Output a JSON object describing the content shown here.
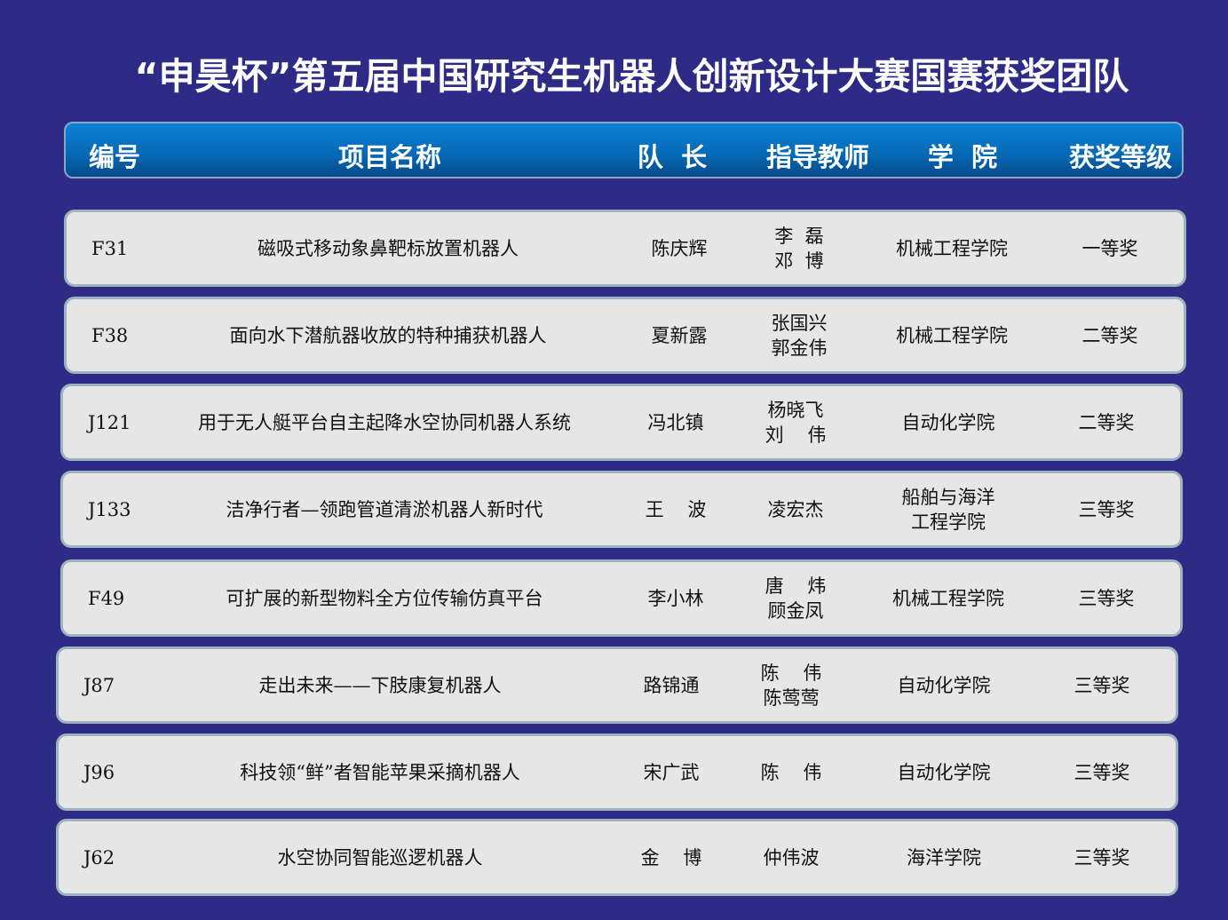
{
  "title": "“申昊杯”第五届中国研究生机器人创新设计大赛国赛获奖团队",
  "columns": [
    "编号",
    "项目名称",
    "队  长",
    "指导教师",
    "学  院",
    "获奖等级"
  ],
  "rows": [
    {
      "id": "F31",
      "name": "磁吸式移动象鼻靶标放置机器人",
      "leader": "陈庆辉",
      "advisor": "李  磊\n邓  博",
      "college": "机械工程学院",
      "award": "一等奖"
    },
    {
      "id": "F38",
      "name": "面向水下潜航器收放的特种捕获机器人",
      "leader": "夏新露",
      "advisor": "张国兴\n郭金伟",
      "college": "机械工程学院",
      "award": "二等奖"
    },
    {
      "id": "J121",
      "name": "用于无人艇平台自主起降水空协同机器人系统",
      "leader": "冯北镇",
      "advisor": "杨晓飞\n刘    伟",
      "college": "自动化学院",
      "award": "二等奖"
    },
    {
      "id": "J133",
      "name": "洁净行者—领跑管道清淤机器人新时代",
      "leader": "王    波",
      "advisor": "凌宏杰",
      "college": "船舶与海洋\n工程学院",
      "award": "三等奖"
    },
    {
      "id": "F49",
      "name": "可扩展的新型物料全方位传输仿真平台",
      "leader": "李小林",
      "advisor": "唐    炜\n顾金凤",
      "college": "机械工程学院",
      "award": "三等奖"
    },
    {
      "id": "J87",
      "name": "走出未来——下肢康复机器人",
      "leader": "路锦通",
      "advisor": "陈    伟\n陈莺莺",
      "college": "自动化学院",
      "award": "三等奖"
    },
    {
      "id": "J96",
      "name": "科技领“鲜”者智能苹果采摘机器人",
      "leader": "宋广武",
      "advisor": "陈    伟",
      "college": "自动化学院",
      "award": "三等奖"
    },
    {
      "id": "J62",
      "name": "水空协同智能巡逻机器人",
      "leader": "金    博",
      "advisor": "仲伟波",
      "college": "海洋学院",
      "award": "三等奖"
    }
  ]
}
